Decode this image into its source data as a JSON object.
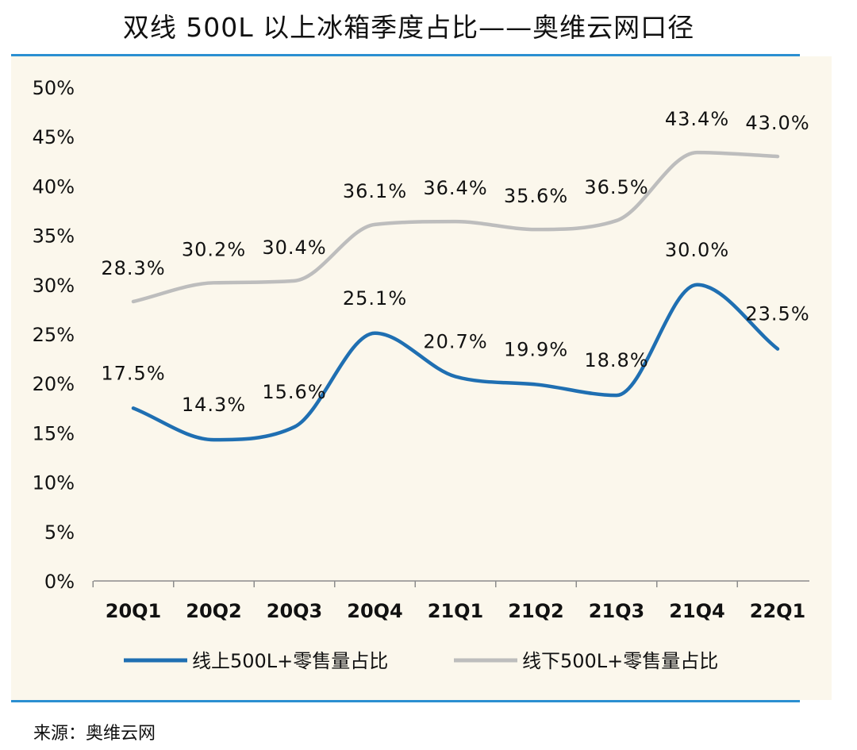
{
  "page": {
    "title": "双线 500L 以上冰箱季度占比——奥维云网口径",
    "source_label": "来源：",
    "source_value": "奥维云网"
  },
  "colors": {
    "accent_rule": "#2b8fd1",
    "plot_background": "#fbf7ec",
    "online_series": "#1f6fb2",
    "offline_series": "#bdbdbd"
  },
  "chart_data": {
    "type": "line",
    "smooth": true,
    "categories": [
      "20Q1",
      "20Q2",
      "20Q3",
      "20Q4",
      "21Q1",
      "21Q2",
      "21Q3",
      "21Q4",
      "22Q1"
    ],
    "series": [
      {
        "name": "线上500L+零售量占比",
        "values": [
          17.5,
          14.3,
          15.6,
          25.1,
          20.7,
          19.9,
          18.8,
          30.0,
          23.5
        ],
        "labels": [
          "17.5%",
          "14.3%",
          "15.6%",
          "25.1%",
          "20.7%",
          "19.9%",
          "18.8%",
          "30.0%",
          "23.5%"
        ]
      },
      {
        "name": "线下500L+零售量占比",
        "values": [
          28.3,
          30.2,
          30.4,
          36.1,
          36.4,
          35.6,
          36.5,
          43.4,
          43.0
        ],
        "labels": [
          "28.3%",
          "30.2%",
          "30.4%",
          "36.1%",
          "36.4%",
          "35.6%",
          "36.5%",
          "43.4%",
          "43.0%"
        ]
      }
    ],
    "ylim": [
      0,
      50
    ],
    "yticks": [
      0,
      5,
      10,
      15,
      20,
      25,
      30,
      35,
      40,
      45,
      50
    ],
    "ytick_labels": [
      "0%",
      "5%",
      "10%",
      "15%",
      "20%",
      "25%",
      "30%",
      "35%",
      "40%",
      "45%",
      "50%"
    ],
    "grid": false,
    "legend_position": "bottom"
  }
}
